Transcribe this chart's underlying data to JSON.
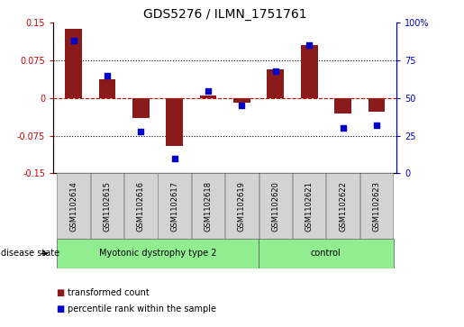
{
  "title": "GDS5276 / ILMN_1751761",
  "samples": [
    "GSM1102614",
    "GSM1102615",
    "GSM1102616",
    "GSM1102617",
    "GSM1102618",
    "GSM1102619",
    "GSM1102620",
    "GSM1102621",
    "GSM1102622",
    "GSM1102623"
  ],
  "bar_values": [
    0.138,
    0.038,
    -0.04,
    -0.095,
    0.005,
    -0.01,
    0.058,
    0.105,
    -0.03,
    -0.028
  ],
  "dot_values": [
    88,
    65,
    28,
    10,
    55,
    45,
    68,
    85,
    30,
    32
  ],
  "ylim_left": [
    -0.15,
    0.15
  ],
  "ylim_right": [
    0,
    100
  ],
  "yticks_left": [
    -0.15,
    -0.075,
    0,
    0.075,
    0.15
  ],
  "yticks_right": [
    0,
    25,
    50,
    75,
    100
  ],
  "ytick_labels_left": [
    "-0.15",
    "-0.075",
    "0",
    "0.075",
    "0.15"
  ],
  "ytick_labels_right": [
    "0",
    "25",
    "50",
    "75",
    "100%"
  ],
  "bar_color": "#8B1A1A",
  "dot_color": "#0000CD",
  "zero_line_color": "#CC0000",
  "grid_color": "#000000",
  "groups": [
    {
      "label": "Myotonic dystrophy type 2",
      "start": 0,
      "end": 6,
      "color": "#90EE90"
    },
    {
      "label": "control",
      "start": 6,
      "end": 10,
      "color": "#90EE90"
    }
  ],
  "disease_state_label": "disease state",
  "legend_items": [
    {
      "label": "transformed count",
      "color": "#8B1A1A"
    },
    {
      "label": "percentile rank within the sample",
      "color": "#0000CD"
    }
  ],
  "sample_box_color": "#D3D3D3",
  "title_fontsize": 10,
  "tick_fontsize": 7,
  "sample_fontsize": 6,
  "group_fontsize": 7,
  "legend_fontsize": 7,
  "disease_state_fontsize": 7
}
